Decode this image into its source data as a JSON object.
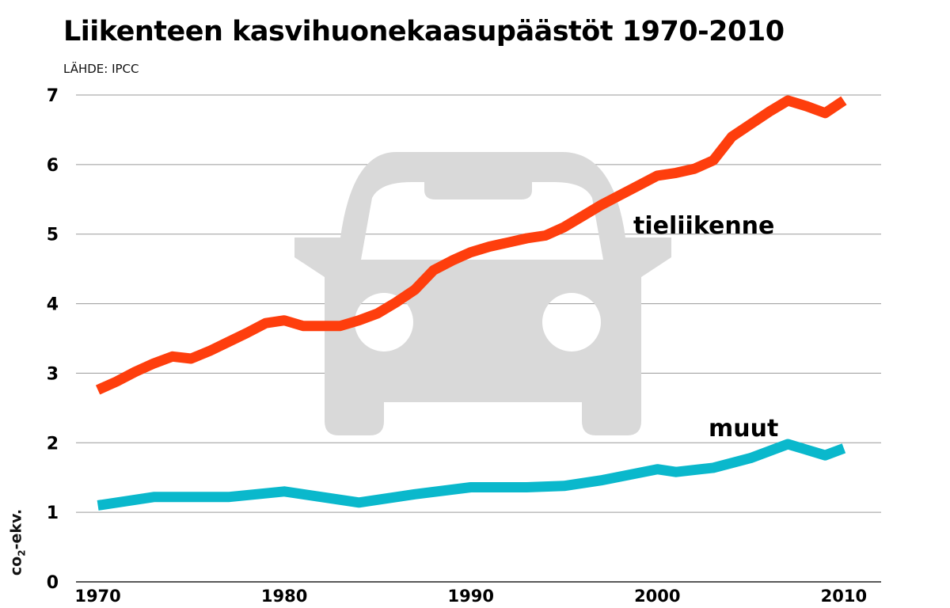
{
  "title": "Liikenteen kasvihuonekaasupäästöt 1970-2010",
  "source": "LÄHDE: IPCC",
  "colors": {
    "road": "#fe3e0d",
    "other": "#0ab8cc",
    "grid": "#9a9a9a",
    "car": "#d9d9d9",
    "text": "#000000"
  },
  "icon": "car-icon",
  "chart_data": {
    "type": "line",
    "title": "Liikenteen kasvihuonekaasupäästöt 1970-2010",
    "subtitle": "LÄHDE: IPCC",
    "ylabel": "co₂-ekv.",
    "ylabel_base": "co",
    "ylabel_sub": "2",
    "ylabel_rest": "-ekv.",
    "xlabel": "",
    "xlim": [
      1969,
      2012
    ],
    "ylim": [
      0,
      7
    ],
    "yticks": [
      "0",
      "1",
      "2",
      "3",
      "4",
      "5",
      "6",
      "7"
    ],
    "xticks": [
      {
        "label": "1970",
        "value": 1970
      },
      {
        "label": "1980",
        "value": 1980
      },
      {
        "label": "1990",
        "value": 1990
      },
      {
        "label": "2000",
        "value": 2000
      },
      {
        "label": "2010",
        "value": 2010
      }
    ],
    "grid": true,
    "series": [
      {
        "name": "tieliikenne",
        "color": "#fe3e0d",
        "x": [
          1970,
          1971,
          1972,
          1973,
          1974,
          1975,
          1976,
          1977,
          1978,
          1979,
          1980,
          1981,
          1982,
          1983,
          1984,
          1985,
          1986,
          1987,
          1988,
          1989,
          1990,
          1991,
          1992,
          1993,
          1994,
          1995,
          1996,
          1997,
          1998,
          1999,
          2000,
          2001,
          2002,
          2003,
          2004,
          2005,
          2006,
          2007,
          2008,
          2009,
          2010
        ],
        "values": [
          2.76,
          2.88,
          3.02,
          3.14,
          3.24,
          3.21,
          3.32,
          3.45,
          3.58,
          3.72,
          3.76,
          3.68,
          3.68,
          3.68,
          3.76,
          3.86,
          4.02,
          4.2,
          4.48,
          4.62,
          4.74,
          4.82,
          4.88,
          4.94,
          4.98,
          5.1,
          5.26,
          5.42,
          5.56,
          5.7,
          5.84,
          5.88,
          5.94,
          6.06,
          6.4,
          6.58,
          6.76,
          6.92,
          6.84,
          6.74,
          6.92
        ]
      },
      {
        "name": "muut",
        "color": "#0ab8cc",
        "x": [
          1970,
          1973,
          1976,
          1977,
          1980,
          1984,
          1987,
          1990,
          1993,
          1995,
          1997,
          2000,
          2001,
          2003,
          2005,
          2007,
          2009,
          2010
        ],
        "values": [
          1.1,
          1.22,
          1.22,
          1.22,
          1.3,
          1.14,
          1.26,
          1.36,
          1.36,
          1.38,
          1.46,
          1.62,
          1.58,
          1.64,
          1.78,
          1.98,
          1.82,
          1.92
        ]
      }
    ]
  }
}
